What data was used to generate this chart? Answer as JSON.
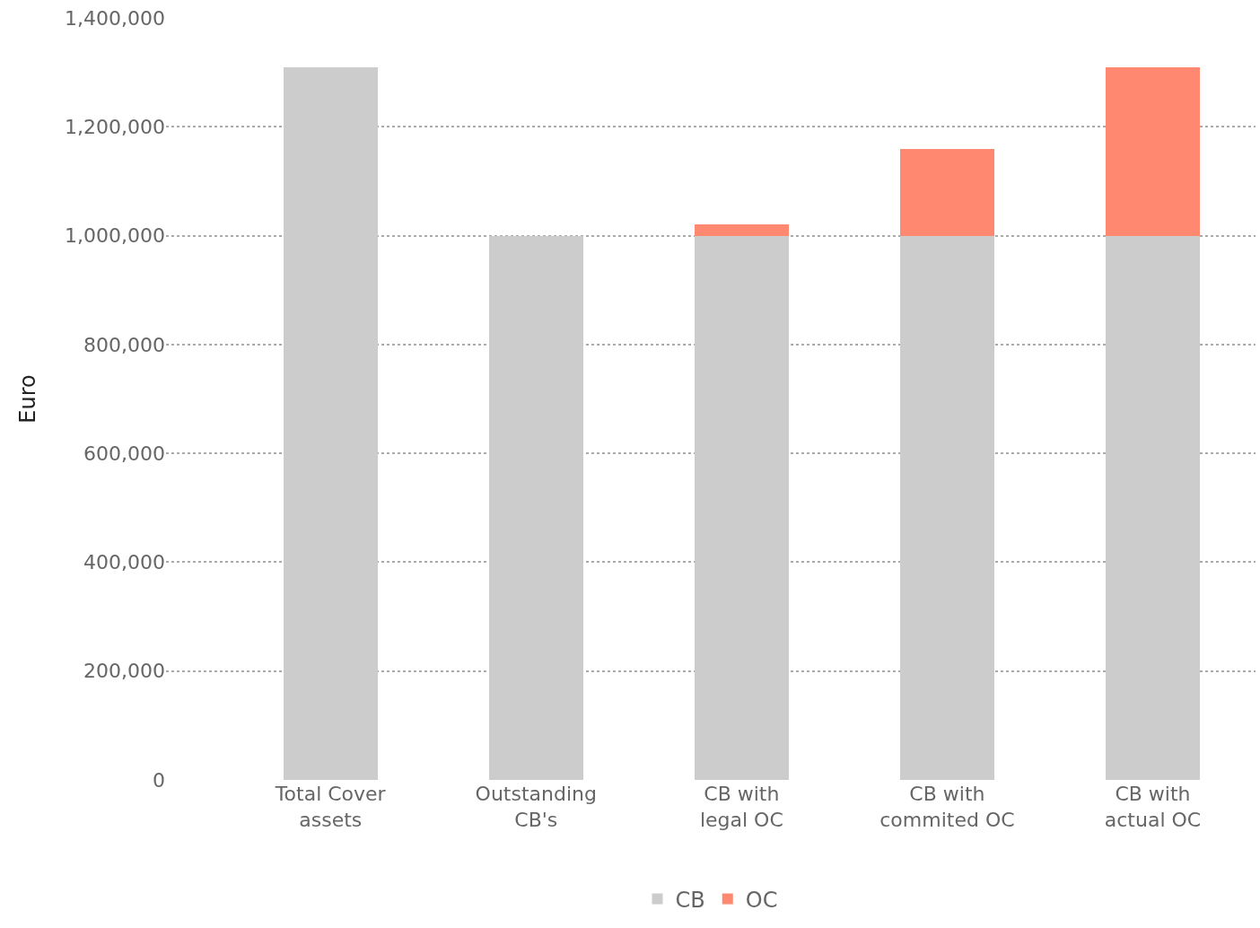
{
  "chart_data": {
    "type": "bar",
    "stacked": true,
    "ylabel": "Euro",
    "categories": [
      "Total Cover assets",
      "Outstanding CB's",
      "CB with legal OC",
      "CB with commited OC",
      "CB with actual OC"
    ],
    "series": [
      {
        "name": "CB",
        "color": "#cccccc",
        "values": [
          1310000,
          1000000,
          1000000,
          1000000,
          1000000
        ]
      },
      {
        "name": "OC",
        "color": "#ff8870",
        "values": [
          null,
          null,
          20000,
          160000,
          310000
        ]
      }
    ],
    "ylim": [
      0,
      1400000
    ],
    "yticks": [
      {
        "value": 0,
        "label": "0"
      },
      {
        "value": 200000,
        "label": "200,000"
      },
      {
        "value": 400000,
        "label": "400,000"
      },
      {
        "value": 600000,
        "label": "600,000"
      },
      {
        "value": 800000,
        "label": "800,000"
      },
      {
        "value": 1000000,
        "label": "1,000,000"
      },
      {
        "value": 1200000,
        "label": "1,200,000"
      },
      {
        "value": 1400000,
        "label": "1,400,000"
      }
    ],
    "grid": "y",
    "legend": "bottom"
  }
}
